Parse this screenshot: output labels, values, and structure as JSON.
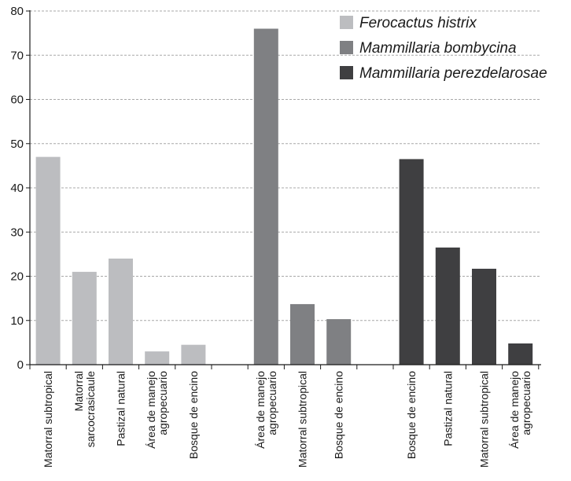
{
  "chart_data": {
    "type": "bar",
    "title": "",
    "xlabel": "",
    "ylabel": "",
    "ylim": [
      0,
      80
    ],
    "yticks": [
      0,
      10,
      20,
      30,
      40,
      50,
      60,
      70,
      80
    ],
    "grid": true,
    "legend_position": "top-right",
    "groups": [
      {
        "series": "Ferocactus histrix",
        "color": "#bcbdc0",
        "bars": [
          {
            "label": [
              "Matorral subtropical"
            ],
            "value": 47
          },
          {
            "label": [
              "Matorral",
              "sarcocrasicaule"
            ],
            "value": 21
          },
          {
            "label": [
              "Pastizal natural"
            ],
            "value": 24
          },
          {
            "label": [
              "Área de manejo",
              "agropecuario"
            ],
            "value": 3
          },
          {
            "label": [
              "Bosque de encino"
            ],
            "value": 4.5
          }
        ]
      },
      {
        "series": "Mammillaria bombycina",
        "color": "#7f8083",
        "bars": [
          {
            "label": [
              "Área de manejo",
              "agropecuario"
            ],
            "value": 76
          },
          {
            "label": [
              "Matorral subtropical"
            ],
            "value": 13.7
          },
          {
            "label": [
              "Bosque de encino"
            ],
            "value": 10.3
          }
        ]
      },
      {
        "series": "Mammillaria perezdelarosae",
        "color": "#3f3f41",
        "bars": [
          {
            "label": [
              "Bosque de encino"
            ],
            "value": 46.5
          },
          {
            "label": [
              "Pastizal natural"
            ],
            "value": 26.5
          },
          {
            "label": [
              "Matorral subtropical"
            ],
            "value": 21.7
          },
          {
            "label": [
              "Área de manejo",
              "agropecuario"
            ],
            "value": 4.8
          }
        ]
      }
    ]
  }
}
